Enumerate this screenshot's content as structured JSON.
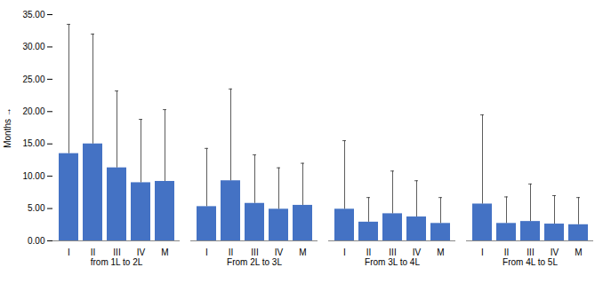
{
  "chart_data": {
    "type": "bar",
    "ylabel": "Months",
    "categories": [
      "I",
      "II",
      "III",
      "IV",
      "M"
    ],
    "series": [
      {
        "name": "from 1L to 2L",
        "values": [
          13.5,
          15.0,
          11.3,
          9.0,
          9.2
        ],
        "error_upper": [
          33.5,
          32.0,
          23.2,
          18.8,
          20.3
        ]
      },
      {
        "name": "From 2L to 3L",
        "values": [
          5.3,
          9.3,
          5.8,
          4.9,
          5.5
        ],
        "error_upper": [
          14.3,
          23.5,
          13.3,
          11.3,
          12.0
        ]
      },
      {
        "name": "From 3L to 4L",
        "values": [
          4.9,
          2.9,
          4.2,
          3.7,
          2.7
        ],
        "error_upper": [
          15.5,
          6.7,
          10.8,
          9.3,
          6.7
        ]
      },
      {
        "name": "From 4L to 5L",
        "values": [
          5.7,
          2.7,
          3.0,
          2.6,
          2.5
        ],
        "error_upper": [
          19.5,
          6.8,
          8.8,
          7.0,
          6.7
        ]
      }
    ],
    "color": "#4472C4",
    "ylim": [
      0,
      35
    ],
    "yticks": [
      {
        "value": 0,
        "label": "0.00"
      },
      {
        "value": 5,
        "label": "5.00"
      },
      {
        "value": 10,
        "label": "10.00"
      },
      {
        "value": 15,
        "label": "15.00"
      },
      {
        "value": 20,
        "label": "20.00"
      },
      {
        "value": 25,
        "label": "25.00"
      },
      {
        "value": 30,
        "label": "30.00"
      },
      {
        "value": 35,
        "label": "35.00"
      }
    ],
    "grid": false
  }
}
